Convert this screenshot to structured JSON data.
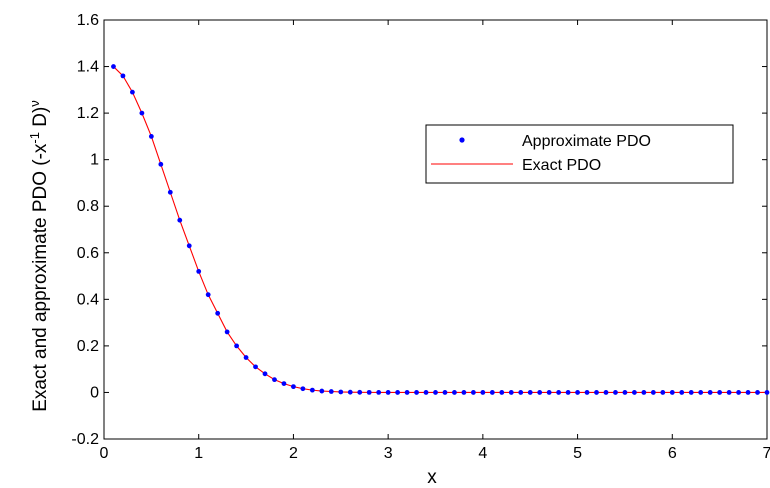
{
  "chart_data": {
    "type": "line",
    "title": "",
    "xlabel": "x",
    "ylabel": "Exact and approximate PDO (-x",
    "ylabel_sup1": "-1",
    "ylabel_mid": " D)",
    "ylabel_sup2": "ν",
    "xlim": [
      0,
      7
    ],
    "ylim": [
      -0.2,
      1.6
    ],
    "xticks": [
      "0",
      "1",
      "2",
      "3",
      "4",
      "5",
      "6",
      "7"
    ],
    "yticks": [
      "-0.2",
      "0",
      "0.2",
      "0.4",
      "0.6",
      "0.8",
      "1",
      "1.2",
      "1.4",
      "1.6"
    ],
    "grid": false,
    "legend_position": "top-right",
    "series": [
      {
        "name": "Approximate PDO",
        "style": "markers",
        "color": "#0000ff",
        "x": [
          0.1,
          0.2,
          0.3,
          0.4,
          0.5,
          0.6,
          0.7,
          0.8,
          0.9,
          1.0,
          1.1,
          1.2,
          1.3,
          1.4,
          1.5,
          1.6,
          1.7,
          1.8,
          1.9,
          2.0,
          2.1,
          2.2,
          2.3,
          2.4,
          2.5,
          2.6,
          2.7,
          2.8,
          2.9,
          3.0,
          3.1,
          3.2,
          3.3,
          3.4,
          3.5,
          3.6,
          3.7,
          3.8,
          3.9,
          4.0,
          4.1,
          4.2,
          4.3,
          4.4,
          4.5,
          4.6,
          4.7,
          4.8,
          4.9,
          5.0,
          5.1,
          5.2,
          5.3,
          5.4,
          5.5,
          5.6,
          5.7,
          5.8,
          5.9,
          6.0,
          6.1,
          6.2,
          6.3,
          6.4,
          6.5,
          6.6,
          6.7,
          6.8,
          6.9,
          7.0
        ],
        "y": [
          1.4,
          1.36,
          1.29,
          1.2,
          1.1,
          0.98,
          0.86,
          0.74,
          0.63,
          0.52,
          0.42,
          0.34,
          0.26,
          0.2,
          0.15,
          0.11,
          0.08,
          0.055,
          0.038,
          0.025,
          0.016,
          0.01,
          0.006,
          0.004,
          0.002,
          0.001,
          0.0005,
          0.0003,
          0.0002,
          0.0001,
          0,
          0,
          0,
          0,
          0,
          0,
          0,
          0,
          0,
          0,
          0,
          0,
          0,
          0,
          0,
          0,
          0,
          0,
          0,
          0,
          0,
          0,
          0,
          0,
          0,
          0,
          0,
          0,
          0,
          0,
          0,
          0,
          0,
          0,
          0,
          0,
          0,
          0,
          0,
          0
        ]
      },
      {
        "name": "Exact PDO",
        "style": "line",
        "color": "#ff0000",
        "x": [
          0.1,
          0.2,
          0.3,
          0.4,
          0.5,
          0.6,
          0.7,
          0.8,
          0.9,
          1.0,
          1.1,
          1.2,
          1.3,
          1.4,
          1.5,
          1.6,
          1.7,
          1.8,
          1.9,
          2.0,
          2.1,
          2.2,
          2.3,
          2.4,
          2.5,
          2.6,
          2.7,
          2.8,
          2.9,
          3.0,
          3.5,
          4.0,
          4.5,
          5.0,
          5.5,
          6.0,
          6.5,
          7.0
        ],
        "y": [
          1.4,
          1.36,
          1.29,
          1.2,
          1.1,
          0.98,
          0.86,
          0.74,
          0.63,
          0.52,
          0.42,
          0.34,
          0.26,
          0.2,
          0.15,
          0.11,
          0.08,
          0.055,
          0.038,
          0.025,
          0.016,
          0.01,
          0.006,
          0.004,
          0.002,
          0.001,
          0.0005,
          0.0003,
          0.0002,
          0.0001,
          0,
          0,
          0,
          0,
          0,
          0,
          0,
          0
        ]
      }
    ]
  }
}
